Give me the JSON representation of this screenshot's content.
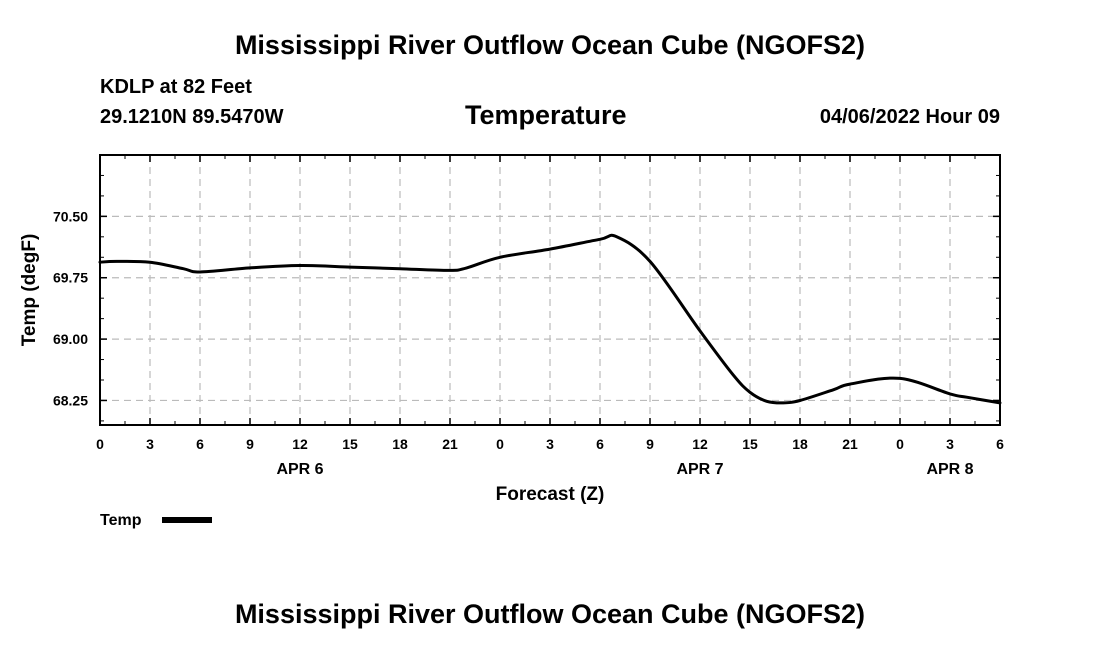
{
  "page": {
    "title": "Mississippi River Outflow Ocean Cube (NGOFS2)",
    "footer_title": "Mississippi River Outflow Ocean Cube (NGOFS2)",
    "station": "KDLP at 82 Feet",
    "coords": "29.1210N  89.5470W",
    "parameter": "Temperature",
    "datetime": "04/06/2022 Hour 09"
  },
  "colors": {
    "line": "#000000",
    "grid": "#bbbbbb",
    "axis": "#000000"
  },
  "chart_data": {
    "type": "line",
    "title": "Temperature",
    "xlabel": "Forecast (Z)",
    "ylabel": "Temp (degF)",
    "x_unit": "hours since Apr 6 00Z",
    "xlim": [
      0,
      54
    ],
    "ylim": [
      67.95,
      71.25
    ],
    "yticks": [
      68.25,
      69.0,
      69.75,
      70.5
    ],
    "ytick_labels": [
      "68.25",
      "69.00",
      "69.75",
      "70.50"
    ],
    "xticks": [
      0,
      3,
      6,
      9,
      12,
      15,
      18,
      21,
      24,
      27,
      30,
      33,
      36,
      39,
      42,
      45,
      48,
      51,
      54
    ],
    "xtick_labels": [
      "0",
      "3",
      "6",
      "9",
      "12",
      "15",
      "18",
      "21",
      "0",
      "3",
      "6",
      "9",
      "12",
      "15",
      "18",
      "21",
      "0",
      "3",
      "6"
    ],
    "date_labels": [
      {
        "x": 12,
        "label": "APR 6"
      },
      {
        "x": 36,
        "label": "APR 7"
      },
      {
        "x": 51,
        "label": "APR 8"
      }
    ],
    "grid": true,
    "series": [
      {
        "name": "Temp",
        "x": [
          0,
          1,
          3,
          5,
          6,
          9,
          12,
          15,
          18,
          21,
          22,
          24,
          27,
          30,
          31,
          33,
          36,
          38,
          39,
          40,
          41,
          42,
          44,
          45,
          48,
          51,
          52,
          54
        ],
        "y": [
          69.94,
          69.95,
          69.94,
          69.86,
          69.82,
          69.87,
          69.9,
          69.88,
          69.86,
          69.84,
          69.87,
          70.0,
          70.1,
          70.22,
          70.25,
          69.95,
          69.1,
          68.56,
          68.35,
          68.24,
          68.22,
          68.25,
          68.38,
          68.45,
          68.52,
          68.33,
          68.29,
          68.22
        ]
      }
    ],
    "legend": {
      "position": "bottom-left",
      "entries": [
        "Temp"
      ]
    }
  }
}
